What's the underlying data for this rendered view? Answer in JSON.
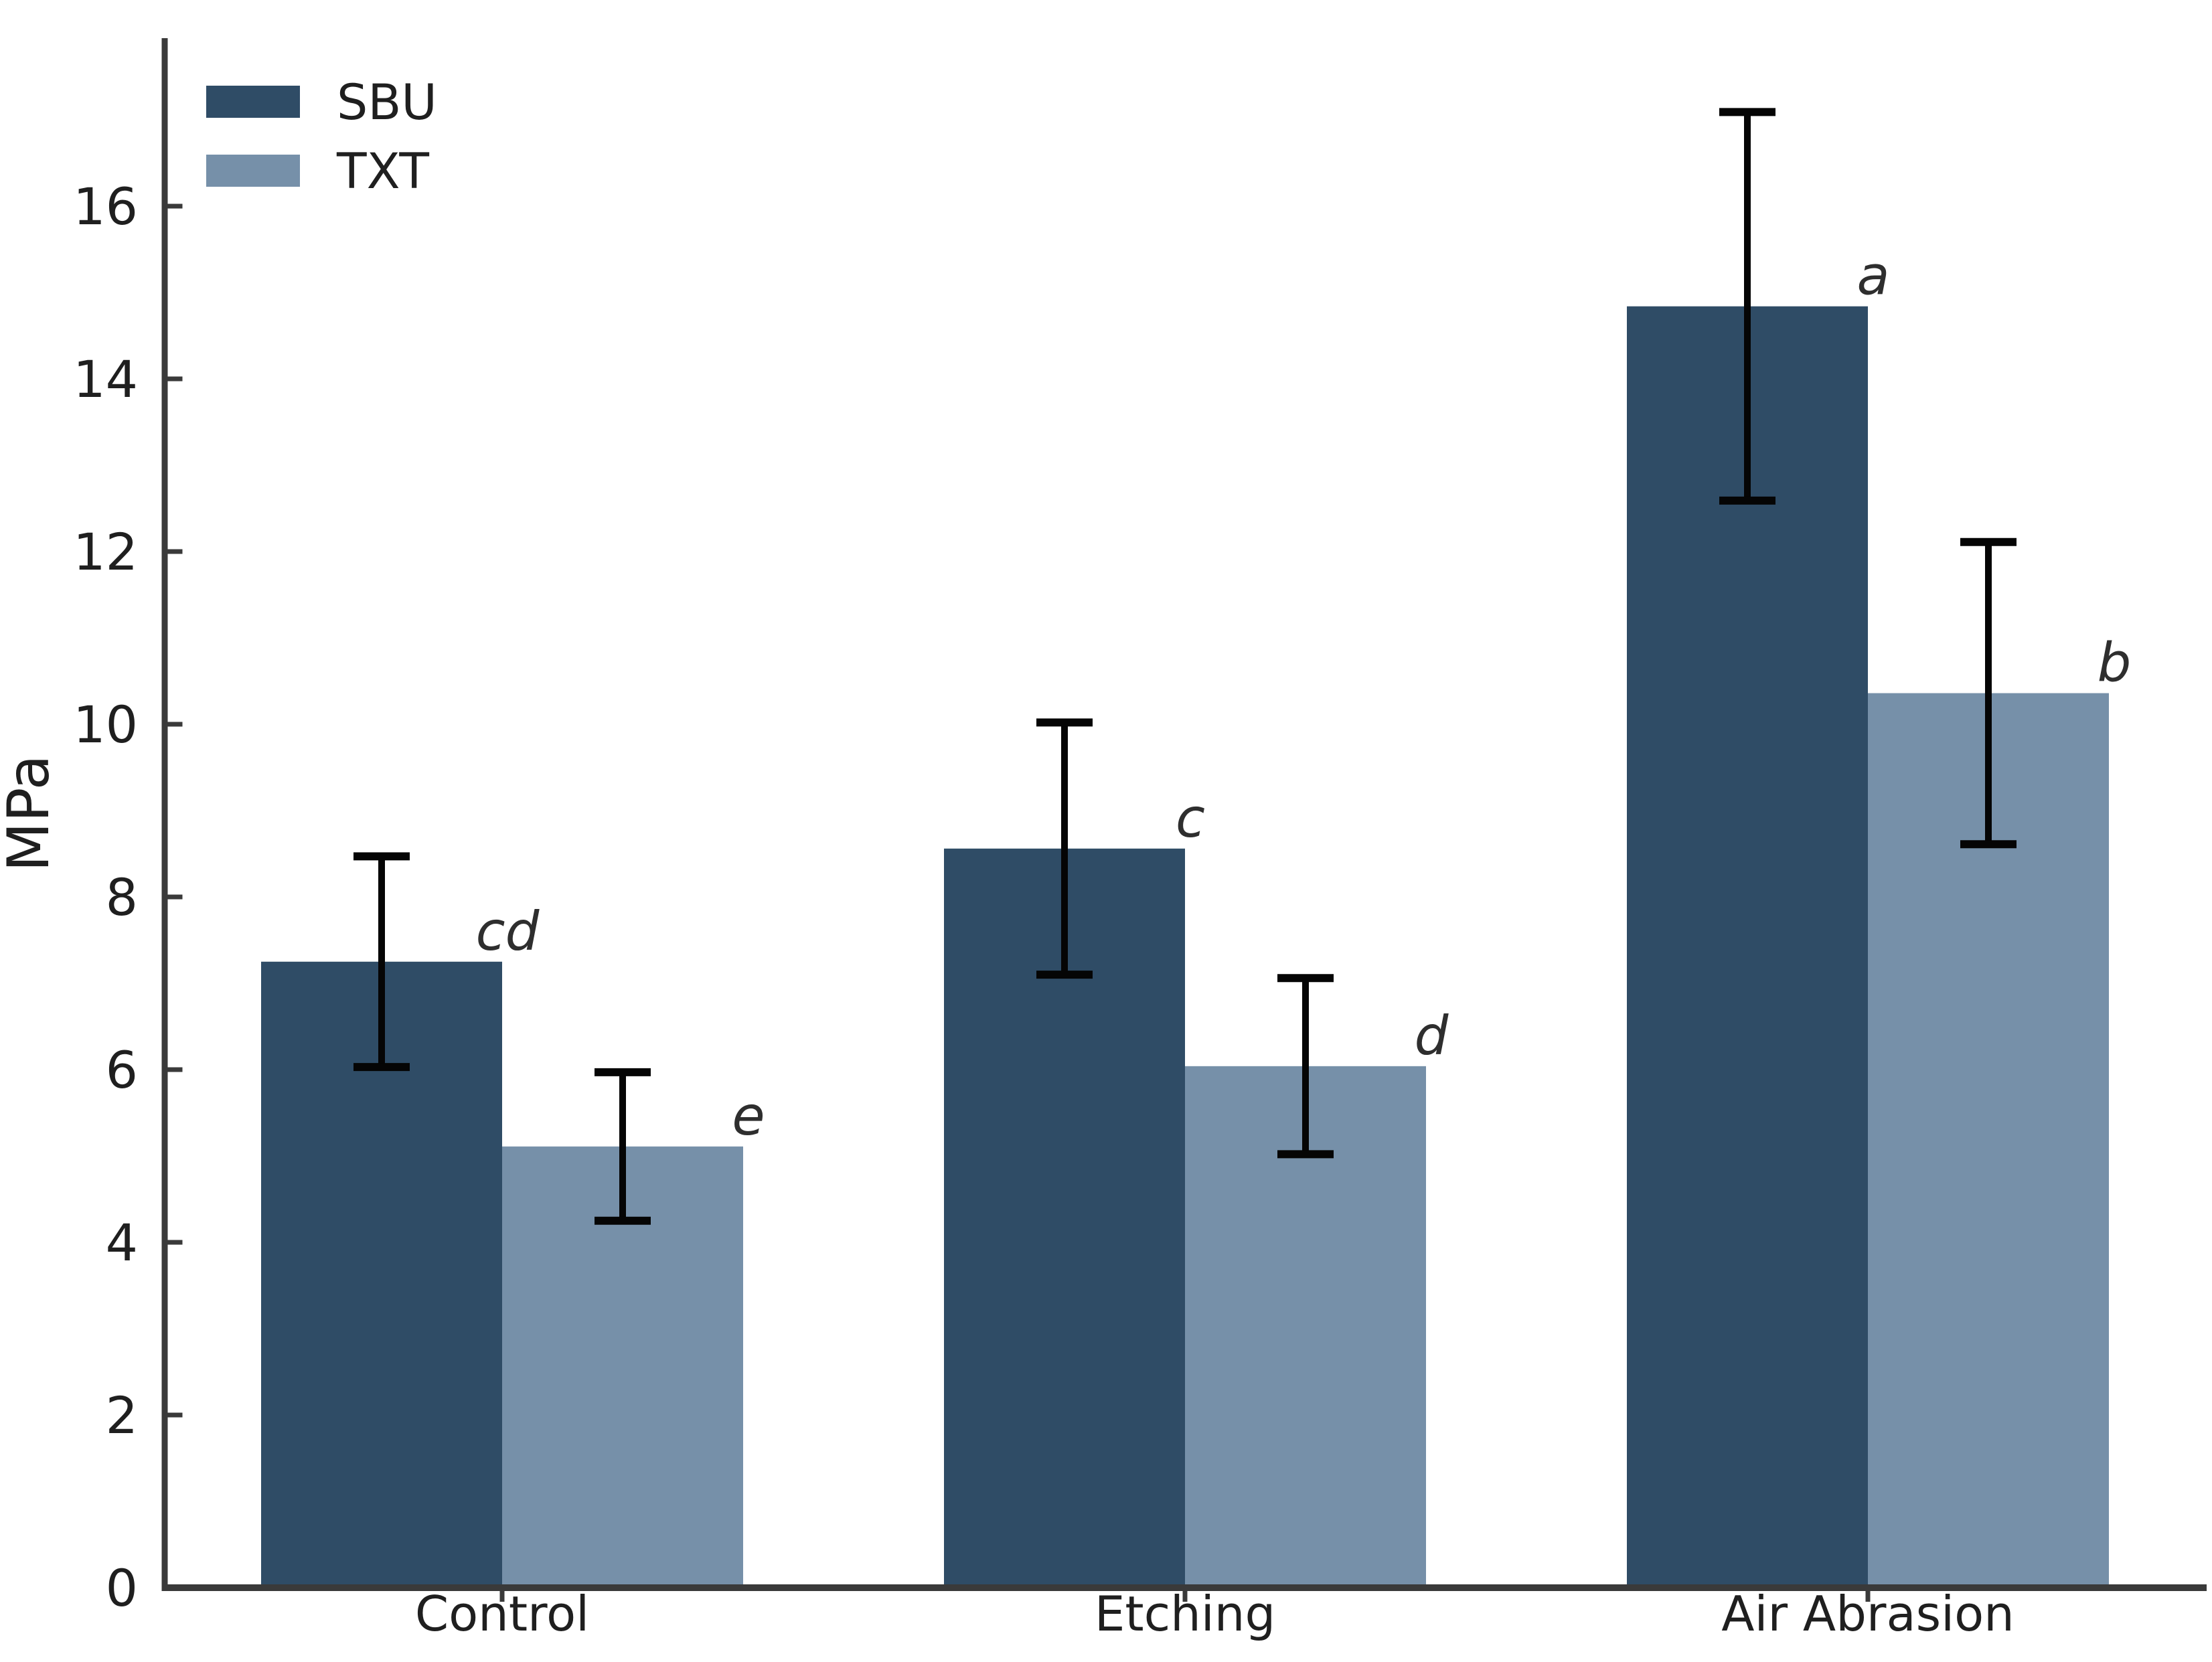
{
  "chart_data": {
    "type": "bar",
    "title": "",
    "ylabel": "MPa",
    "xlabel": "",
    "categories": [
      "Control",
      "Etching",
      "Air Abrasion"
    ],
    "series": [
      {
        "name": "SBU",
        "color": "#2f4c66",
        "values": [
          7.25,
          8.56,
          14.84
        ],
        "errors": [
          1.22,
          1.46,
          2.25
        ],
        "sig_letters": [
          "cd",
          "c",
          "a"
        ]
      },
      {
        "name": "TXT",
        "color": "#7690a9",
        "values": [
          5.11,
          6.04,
          10.36
        ],
        "errors": [
          0.86,
          1.02,
          1.75
        ],
        "sig_letters": [
          "e",
          "d",
          "b"
        ]
      }
    ],
    "yticks": [
      0,
      2,
      4,
      6,
      8,
      10,
      12,
      14,
      16
    ],
    "ylim": [
      0,
      17.95
    ],
    "grid": false,
    "legend_position": "upper-left",
    "error_bar_color": "#050505",
    "axis_color": "#3a3a3a",
    "tick_label_color": "#1f1f1f",
    "annotation_color": "#2e2e2e",
    "background": "#ffffff"
  }
}
